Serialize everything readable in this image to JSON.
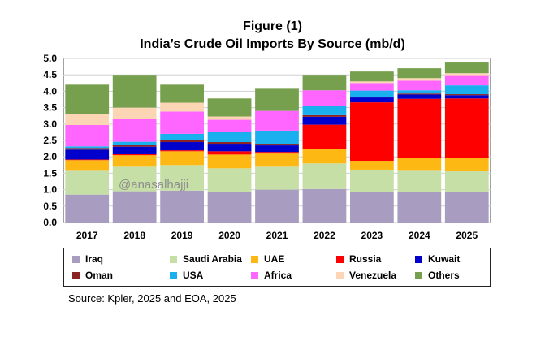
{
  "figure_label": "Figure (1)",
  "source": "Source: Kpler, 2025 and EOA, 2025",
  "watermark": "@anasalhajji",
  "chart_data": {
    "type": "bar",
    "stacked": true,
    "title": "India’s Crude Oil Imports By Source (mb/d)",
    "xlabel": "",
    "ylabel": "",
    "ylim": [
      0,
      5.0
    ],
    "yticks": [
      "0.0",
      "0.5",
      "1.0",
      "1.5",
      "2.0",
      "2.5",
      "3.0",
      "3.5",
      "4.0",
      "4.5",
      "5.0"
    ],
    "grid": true,
    "legend_position": "bottom",
    "categories": [
      "2017",
      "2018",
      "2019",
      "2020",
      "2021",
      "2022",
      "2023",
      "2024",
      "2025"
    ],
    "series": [
      {
        "name": "Iraq",
        "color": "#a89dc0",
        "values": [
          0.85,
          0.95,
          0.97,
          0.92,
          1.0,
          1.02,
          0.93,
          0.93,
          0.94
        ]
      },
      {
        "name": "Saudi Arabia",
        "color": "#c5dfa6",
        "values": [
          0.75,
          0.75,
          0.78,
          0.73,
          0.7,
          0.78,
          0.68,
          0.67,
          0.64
        ]
      },
      {
        "name": "UAE",
        "color": "#fdb813",
        "values": [
          0.3,
          0.35,
          0.42,
          0.42,
          0.4,
          0.45,
          0.27,
          0.37,
          0.4
        ]
      },
      {
        "name": "Russia",
        "color": "#ff0000",
        "values": [
          0.02,
          0.03,
          0.03,
          0.1,
          0.05,
          0.73,
          1.78,
          1.8,
          1.8
        ]
      },
      {
        "name": "Kuwait",
        "color": "#0000cc",
        "values": [
          0.3,
          0.23,
          0.25,
          0.23,
          0.2,
          0.24,
          0.15,
          0.13,
          0.1
        ]
      },
      {
        "name": "Oman",
        "color": "#8b2323",
        "values": [
          0.05,
          0.05,
          0.05,
          0.05,
          0.05,
          0.05,
          0.02,
          0.03,
          0.03
        ]
      },
      {
        "name": "USA",
        "color": "#1ab0f0",
        "values": [
          0.05,
          0.1,
          0.2,
          0.3,
          0.4,
          0.28,
          0.19,
          0.1,
          0.27
        ]
      },
      {
        "name": "Africa",
        "color": "#ff66ff",
        "values": [
          0.65,
          0.69,
          0.68,
          0.38,
          0.6,
          0.48,
          0.23,
          0.29,
          0.31
        ]
      },
      {
        "name": "Venezuela",
        "color": "#fcd5b5",
        "values": [
          0.33,
          0.35,
          0.27,
          0.1,
          0.0,
          0.0,
          0.05,
          0.08,
          0.06
        ]
      },
      {
        "name": "Others",
        "color": "#77a04e",
        "values": [
          0.9,
          1.0,
          0.55,
          0.55,
          0.7,
          0.47,
          0.3,
          0.3,
          0.35
        ]
      }
    ]
  }
}
